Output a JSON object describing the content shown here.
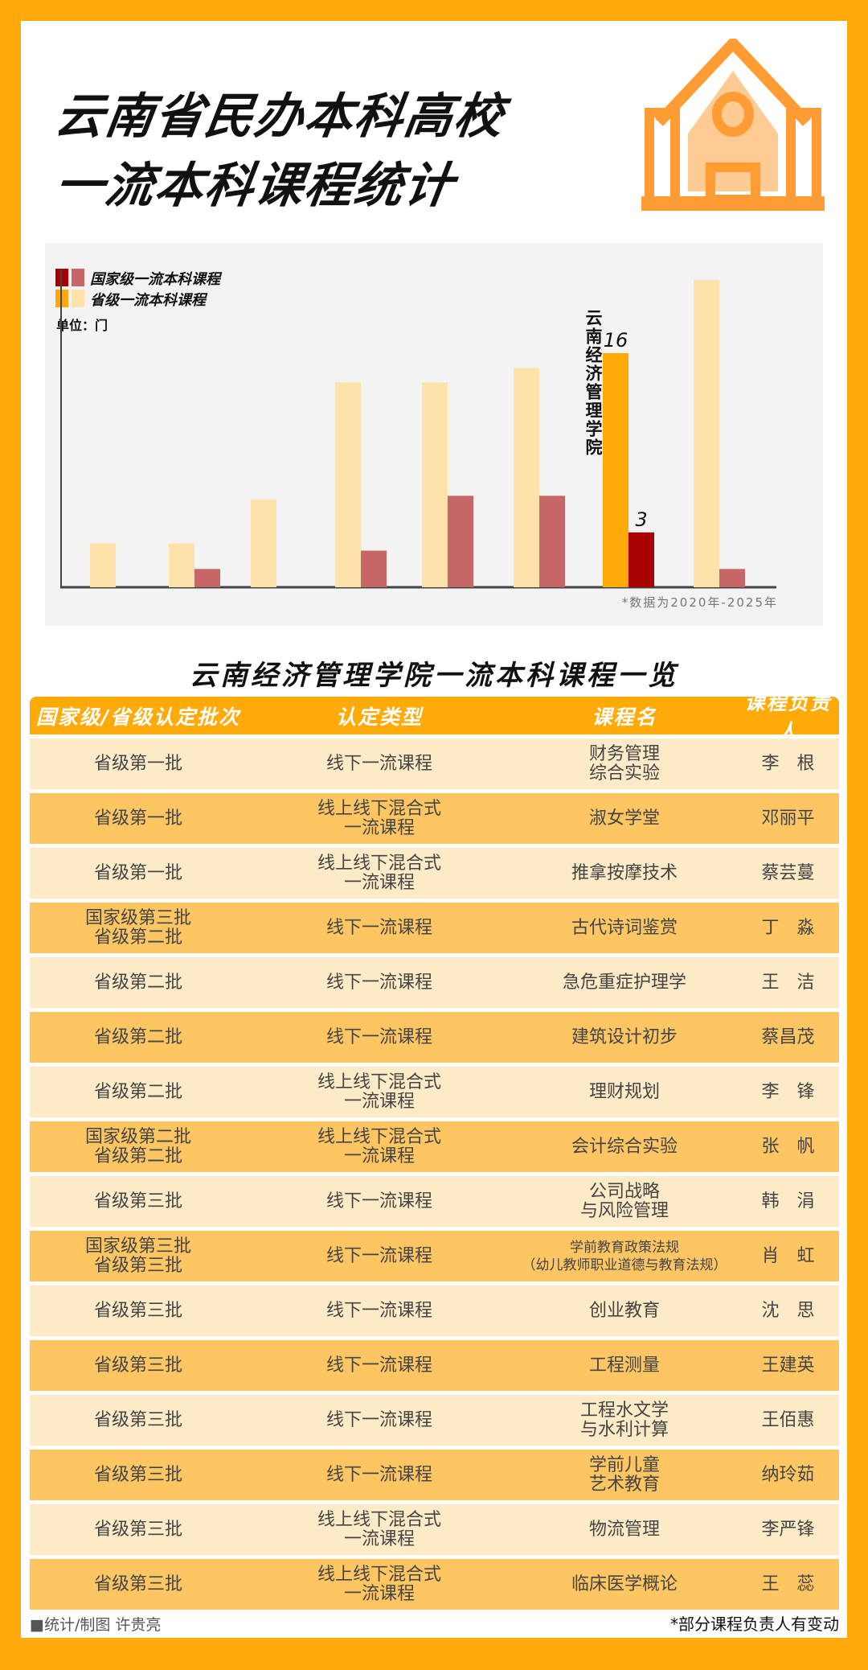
{
  "header": {
    "title_line1": "云南省民办本科高校",
    "title_line2": "一流本科课程统计",
    "icon": "school-building-icon"
  },
  "colors": {
    "border": "#FFAA0A",
    "national_highlight": "#A80000",
    "national": "#C66666",
    "provincial_highlight": "#FFAA08",
    "provincial": "#FFE2AA",
    "row_light": "#FDEBC8",
    "row_dark": "#FEC663"
  },
  "chart_data": {
    "type": "bar",
    "title": "",
    "unit_label": "单位：门",
    "legend": [
      {
        "name": "国家级一流本科课程",
        "colors": [
          "#A80000",
          "#C66666"
        ]
      },
      {
        "name": "省级一流本科课程",
        "colors": [
          "#FFAA08",
          "#FFE2AA"
        ]
      }
    ],
    "legend_placement": "top-left",
    "categories": [
      "",
      "",
      "",
      "",
      "",
      "",
      "云南经济管理学院",
      ""
    ],
    "highlight_index": 6,
    "series": [
      {
        "name": "省级一流本科课程",
        "values": [
          3,
          3,
          6,
          14,
          14,
          15,
          16,
          21
        ]
      },
      {
        "name": "国家级一流本科课程",
        "values": [
          0,
          1,
          0,
          2,
          5,
          5,
          3,
          1
        ]
      }
    ],
    "data_labels": {
      "provincial": "16",
      "national": "3"
    },
    "ylim": [
      0,
      22
    ],
    "grid": false,
    "note": "*数据为2020年-2025年"
  },
  "table": {
    "title": "云南经济管理学院一流本科课程一览",
    "headers": [
      "国家级/省级认定批次",
      "认定类型",
      "课程名",
      "课程负责人"
    ],
    "rows": [
      [
        "省级第一批",
        "线下一流课程",
        "财务管理\n综合实验",
        "李　根"
      ],
      [
        "省级第一批",
        "线上线下混合式\n一流课程",
        "淑女学堂",
        "邓丽平"
      ],
      [
        "省级第一批",
        "线上线下混合式\n一流课程",
        "推拿按摩技术",
        "蔡芸蔓"
      ],
      [
        "国家级第三批\n省级第二批",
        "线下一流课程",
        "古代诗词鉴赏",
        "丁　淼"
      ],
      [
        "省级第二批",
        "线下一流课程",
        "急危重症护理学",
        "王　洁"
      ],
      [
        "省级第二批",
        "线下一流课程",
        "建筑设计初步",
        "蔡昌茂"
      ],
      [
        "省级第二批",
        "线上线下混合式\n一流课程",
        "理财规划",
        "李　锋"
      ],
      [
        "国家级第二批\n省级第二批",
        "线上线下混合式\n一流课程",
        "会计综合实验",
        "张　帆"
      ],
      [
        "省级第三批",
        "线下一流课程",
        "公司战略\n与风险管理",
        "韩　涓"
      ],
      [
        "国家级第三批\n省级第三批",
        "线下一流课程",
        "学前教育政策法规\n（幼儿教师职业道德与教育法规）",
        "肖　虹"
      ],
      [
        "省级第三批",
        "线下一流课程",
        "创业教育",
        "沈　思"
      ],
      [
        "省级第三批",
        "线下一流课程",
        "工程测量",
        "王建英"
      ],
      [
        "省级第三批",
        "线下一流课程",
        "工程水文学\n与水利计算",
        "王佰惠"
      ],
      [
        "省级第三批",
        "线下一流课程",
        "学前儿童\n艺术教育",
        "纳玲茹"
      ],
      [
        "省级第三批",
        "线上线下混合式\n一流课程",
        "物流管理",
        "李严锋"
      ],
      [
        "省级第三批",
        "线上线下混合式\n一流课程",
        "临床医学概论",
        "王　蕊"
      ]
    ]
  },
  "footer": {
    "credit": "■统计/制图  许贵亮",
    "note": "*部分课程负责人有变动"
  }
}
